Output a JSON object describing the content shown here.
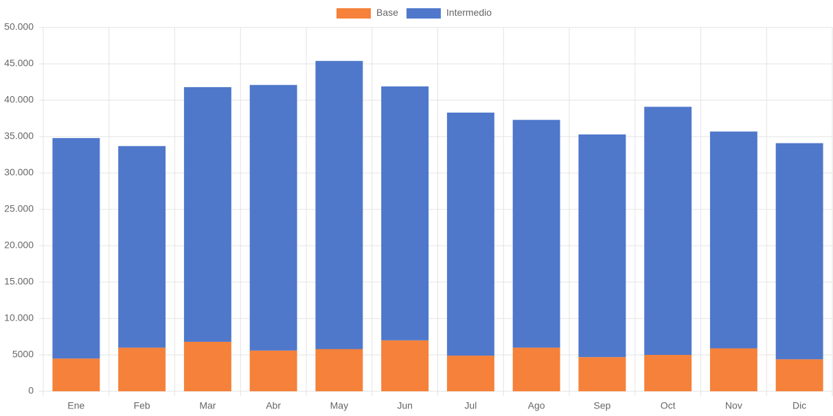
{
  "chart_data": {
    "type": "stacked-bar",
    "categories": [
      "Ene",
      "Feb",
      "Mar",
      "Abr",
      "May",
      "Jun",
      "Jul",
      "Ago",
      "Sep",
      "Oct",
      "Nov",
      "Dic"
    ],
    "series": [
      {
        "name": "Base",
        "color": "#f5813a",
        "values": [
          4500,
          6000,
          6800,
          5600,
          5800,
          7000,
          4900,
          6000,
          4700,
          5000,
          5900,
          4400
        ]
      },
      {
        "name": "Intermedio",
        "color": "#4f78cb",
        "values": [
          30300,
          27700,
          35000,
          36500,
          39600,
          34900,
          33400,
          31300,
          30600,
          34100,
          29800,
          29700
        ]
      }
    ],
    "ylim": [
      0,
      50000
    ],
    "yticks": [
      0,
      5000,
      {
        "value": 10000,
        "label": "10.000"
      },
      {
        "value": 15000,
        "label": "15.000"
      },
      {
        "value": 20000,
        "label": "20.000"
      },
      {
        "value": 25000,
        "label": "25.000"
      },
      {
        "value": 30000,
        "label": "30.000"
      },
      {
        "value": 35000,
        "label": "35.000"
      },
      {
        "value": 40000,
        "label": "40.000"
      },
      {
        "value": 45000,
        "label": "45.000"
      },
      {
        "value": 50000,
        "label": "50.000"
      }
    ],
    "grid": true,
    "legend": "top"
  }
}
